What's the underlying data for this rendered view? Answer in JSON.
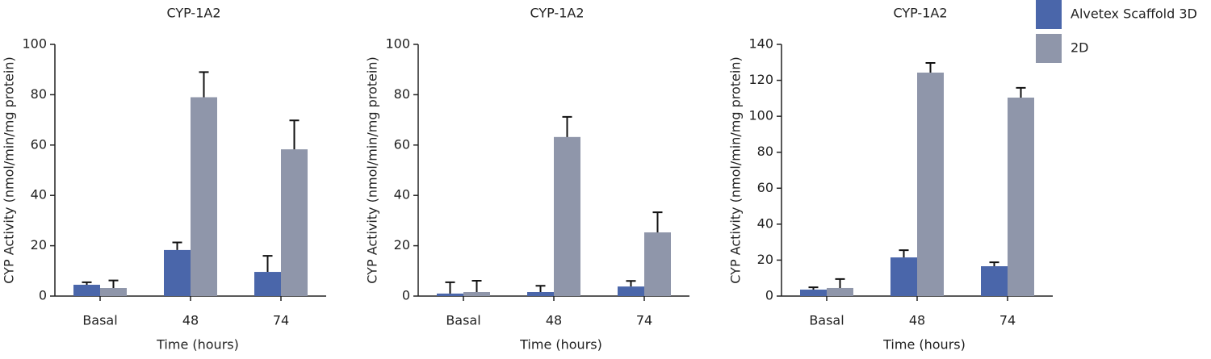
{
  "chart_data": [
    {
      "type": "bar",
      "title": "CYP-1A2",
      "ylabel": "CYP Activity (nmol/min/mg protein)",
      "xlabel": "Time (hours)",
      "categories": [
        "Basal",
        "48",
        "74"
      ],
      "series": [
        {
          "color": "#4a66aa",
          "values": [
            4.5,
            18.3,
            9.6
          ],
          "errors": [
            1,
            3,
            6.4
          ]
        },
        {
          "color": "#8f96aa",
          "values": [
            3.2,
            79,
            58.3
          ],
          "errors": [
            3,
            10,
            11.5
          ]
        }
      ],
      "ylim": [
        0,
        100
      ],
      "yticks": [
        0,
        20,
        40,
        60,
        80,
        100
      ]
    },
    {
      "type": "bar",
      "title": "CYP-1A2",
      "ylabel": "CYP Activity (nmol/min/mg protein)",
      "xlabel": "Time (hours)",
      "categories": [
        "Basal",
        "48",
        "74"
      ],
      "series": [
        {
          "color": "#4a66aa",
          "values": [
            1,
            1.6,
            3.8
          ],
          "errors": [
            4.5,
            2.5,
            2.2
          ]
        },
        {
          "color": "#8f96aa",
          "values": [
            1.6,
            63.2,
            25.3
          ],
          "errors": [
            4.5,
            8,
            8
          ]
        }
      ],
      "ylim": [
        0,
        100
      ],
      "yticks": [
        0,
        20,
        40,
        60,
        80,
        100
      ]
    },
    {
      "type": "bar",
      "title": "CYP-1A2",
      "ylabel": "CYP Activity (nmol/min/mg protein)",
      "xlabel": "Time (hours)",
      "categories": [
        "Basal",
        "48",
        "74"
      ],
      "series": [
        {
          "name": "Alvetex Scaffold 3D",
          "color": "#4a66aa",
          "values": [
            3.6,
            21.5,
            16.6
          ],
          "errors": [
            1.3,
            4,
            2.2
          ]
        },
        {
          "name": "2D",
          "color": "#8f96aa",
          "values": [
            4.5,
            124.3,
            110.4
          ],
          "errors": [
            5,
            5.4,
            5.4
          ]
        }
      ],
      "ylim": [
        0,
        140
      ],
      "yticks": [
        0,
        20,
        40,
        60,
        80,
        100,
        120,
        140
      ]
    }
  ]
}
